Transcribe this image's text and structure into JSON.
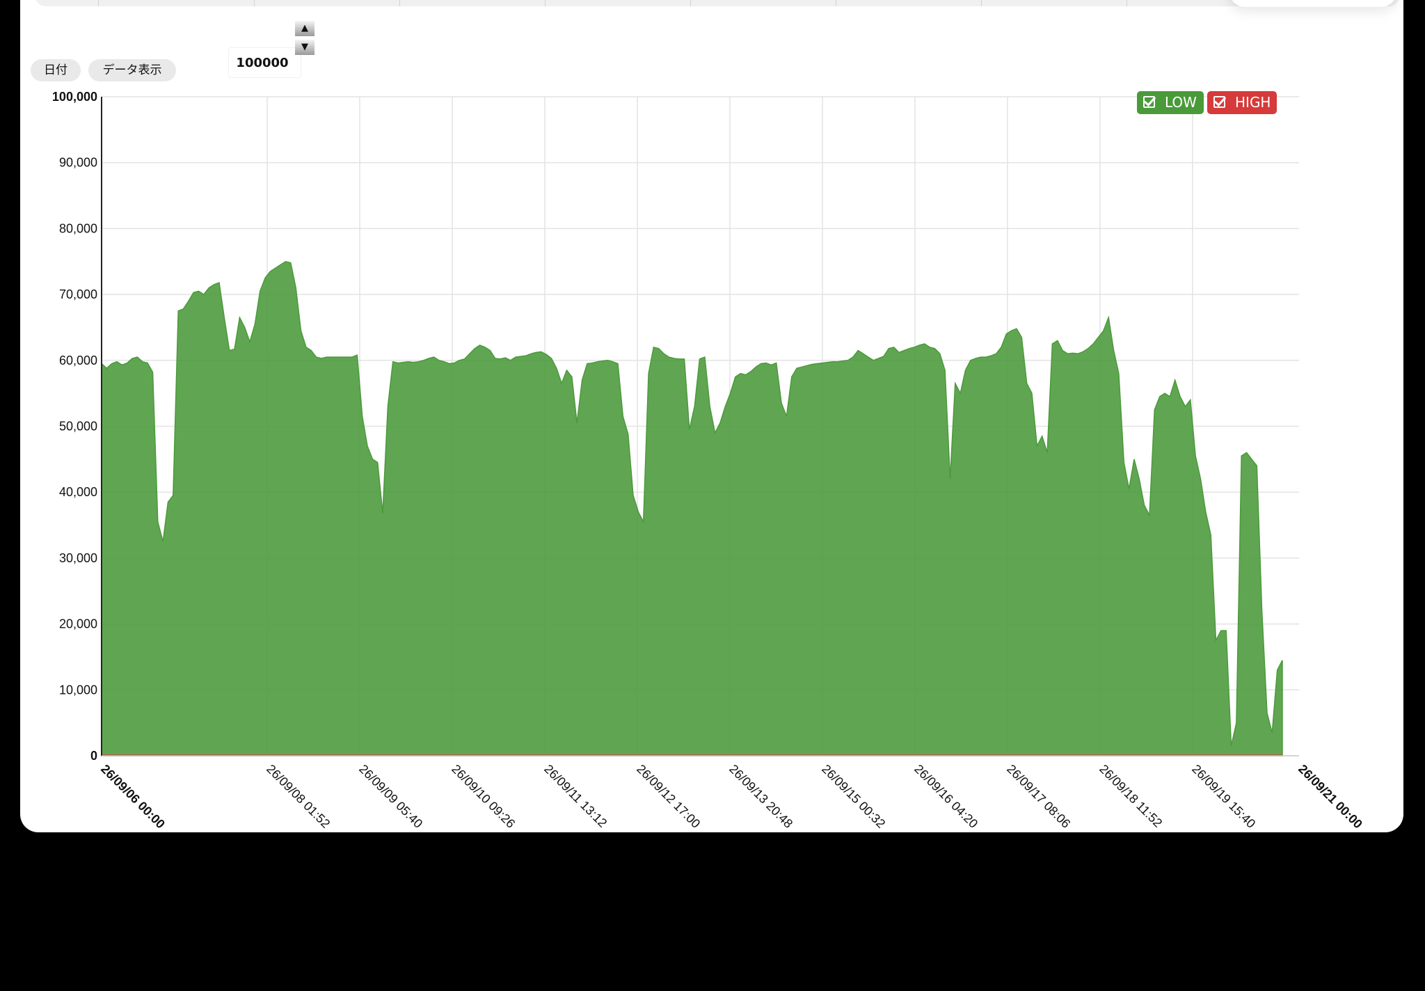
{
  "controls": {
    "date_button": "日付",
    "data_button": "データ表示",
    "max_value": "100000",
    "up_arrow": "▲",
    "down_arrow": "▼"
  },
  "legend": {
    "low_label": "LOW",
    "high_label": "HIGH",
    "low_color": "#4a9a3a",
    "high_color": "#d63a3a"
  },
  "chart_data": {
    "type": "area",
    "ylim": [
      0,
      100000
    ],
    "yticks": [
      "0",
      "10,000",
      "20,000",
      "30,000",
      "40,000",
      "50,000",
      "60,000",
      "70,000",
      "80,000",
      "90,000",
      "100,000"
    ],
    "xticks": [
      "26/09/06 00:00",
      "26/09/08 01:52",
      "26/09/09 05:40",
      "26/09/10 09:26",
      "26/09/11 13:12",
      "26/09/12 17:00",
      "26/09/13 20:48",
      "26/09/15 00:32",
      "26/09/16 04:20",
      "26/09/17 08:06",
      "26/09/18 11:52",
      "26/09/19 15:40",
      "26/09/21 00:00"
    ],
    "grid": true,
    "legend_position": "top-right",
    "series": [
      {
        "name": "LOW",
        "color": "#4a9a3a",
        "values": [
          59500,
          58800,
          59500,
          59800,
          59300,
          59600,
          60300,
          60500,
          59800,
          59600,
          58200,
          35500,
          32500,
          38500,
          39500,
          67500,
          67800,
          69000,
          70300,
          70500,
          70000,
          71000,
          71500,
          71800,
          66500,
          61500,
          61700,
          66500,
          65000,
          62800,
          65500,
          70500,
          72500,
          73500,
          74000,
          74500,
          75000,
          74800,
          71000,
          64500,
          62000,
          61500,
          60500,
          60300,
          60500,
          60500,
          60500,
          60500,
          60500,
          60500,
          60800,
          51500,
          47000,
          45000,
          44500,
          36800,
          53000,
          59800,
          59600,
          59700,
          59800,
          59700,
          59800,
          60000,
          60300,
          60500,
          60000,
          59800,
          59500,
          59600,
          60000,
          60200,
          61000,
          61800,
          62300,
          62000,
          61500,
          60300,
          60200,
          60400,
          60000,
          60500,
          60600,
          60700,
          61000,
          61200,
          61300,
          60900,
          60300,
          58800,
          56500,
          58500,
          57500,
          50500,
          57000,
          59500,
          59600,
          59800,
          59900,
          60000,
          59800,
          59500,
          51500,
          48800,
          39500,
          37000,
          35500,
          58000,
          62000,
          61800,
          61000,
          60500,
          60300,
          60200,
          60200,
          49500,
          53000,
          60200,
          60500,
          53000,
          49000,
          50500,
          53000,
          55000,
          57500,
          58000,
          57800,
          58300,
          59000,
          59500,
          59600,
          59300,
          59600,
          53500,
          51500,
          57500,
          58800,
          59000,
          59200,
          59400,
          59500,
          59600,
          59700,
          59800,
          59800,
          59900,
          60000,
          60500,
          61500,
          61000,
          60500,
          60000,
          60300,
          60600,
          61800,
          62000,
          61200,
          61500,
          61800,
          62000,
          62300,
          62500,
          62000,
          61800,
          61000,
          58500,
          42000,
          56500,
          55000,
          58500,
          60000,
          60300,
          60500,
          60500,
          60700,
          61000,
          62000,
          64000,
          64500,
          64800,
          63500,
          56500,
          55000,
          47000,
          48500,
          46000,
          62500,
          63000,
          61500,
          61000,
          61100,
          61000,
          61300,
          61800,
          62500,
          63500,
          64500,
          66500,
          61500,
          58000,
          44500,
          40500,
          45000,
          42000,
          38000,
          36500,
          52500,
          54500,
          55000,
          54500,
          57000,
          54500,
          53000,
          54000,
          45500,
          42000,
          37000,
          33500,
          17500,
          19000,
          19000,
          1500,
          5000,
          45500,
          46000,
          45000,
          44000,
          22000,
          6500,
          3500,
          13000,
          14500
        ]
      }
    ]
  }
}
